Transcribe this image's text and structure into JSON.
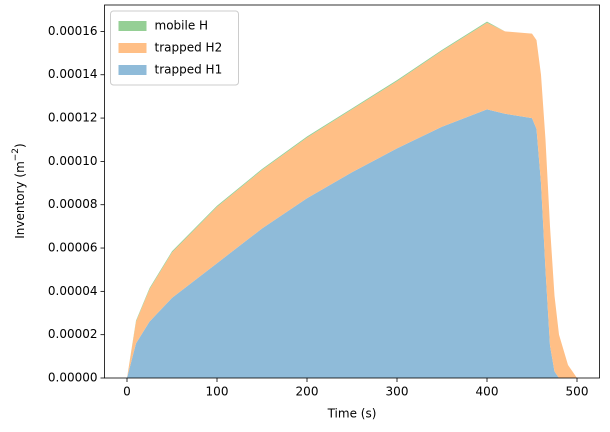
{
  "chart_data": {
    "type": "stacked_area",
    "xlabel": "Time (s)",
    "ylabel": "Inventory (m",
    "ylabel_sup": "−2",
    "ylabel_end": ")",
    "x": [
      0,
      10,
      25,
      50,
      100,
      150,
      200,
      250,
      300,
      350,
      400,
      420,
      450,
      455,
      460,
      465,
      470,
      475,
      480,
      490,
      500
    ],
    "series": [
      {
        "name": "trapped H1",
        "color": "#8fbbd9",
        "values": [
          0,
          1.6e-05,
          2.6e-05,
          3.7e-05,
          5.3e-05,
          6.9e-05,
          8.3e-05,
          9.5e-05,
          0.000106,
          0.000116,
          0.000124,
          0.000122,
          0.00012,
          0.000115,
          9e-05,
          5e-05,
          1.5e-05,
          3e-06,
          0,
          0,
          0
        ]
      },
      {
        "name": "trapped H2",
        "color": "#ffbf86",
        "values": [
          0,
          1e-05,
          1.5e-05,
          2.1e-05,
          2.6e-05,
          2.7e-05,
          2.8e-05,
          2.9e-05,
          3.1e-05,
          3.5e-05,
          4e-05,
          3.8e-05,
          3.9e-05,
          4.1e-05,
          5e-05,
          6e-05,
          5.5e-05,
          3.5e-05,
          2e-05,
          6e-06,
          0
        ]
      },
      {
        "name": "mobile H",
        "color": "#95cf95",
        "values": [
          0,
          5e-07,
          5e-07,
          5e-07,
          5e-07,
          5e-07,
          5e-07,
          5e-07,
          5e-07,
          5e-07,
          5e-07,
          0,
          0,
          0,
          0,
          0,
          0,
          0,
          0,
          0,
          0
        ]
      }
    ],
    "xlim": [
      -25,
      525
    ],
    "xticks": [
      0,
      100,
      200,
      300,
      400,
      500
    ],
    "ylim": [
      0,
      0.0001722
    ],
    "yticks": [
      {
        "value": 0,
        "label": "0.00000"
      },
      {
        "value": 2e-05,
        "label": "0.00002"
      },
      {
        "value": 4e-05,
        "label": "0.00004"
      },
      {
        "value": 6e-05,
        "label": "0.00006"
      },
      {
        "value": 8e-05,
        "label": "0.00008"
      },
      {
        "value": 0.0001,
        "label": "0.00010"
      },
      {
        "value": 0.00012,
        "label": "0.00012"
      },
      {
        "value": 0.00014,
        "label": "0.00014"
      },
      {
        "value": 0.00016,
        "label": "0.00016"
      }
    ],
    "legend": "upper left"
  }
}
